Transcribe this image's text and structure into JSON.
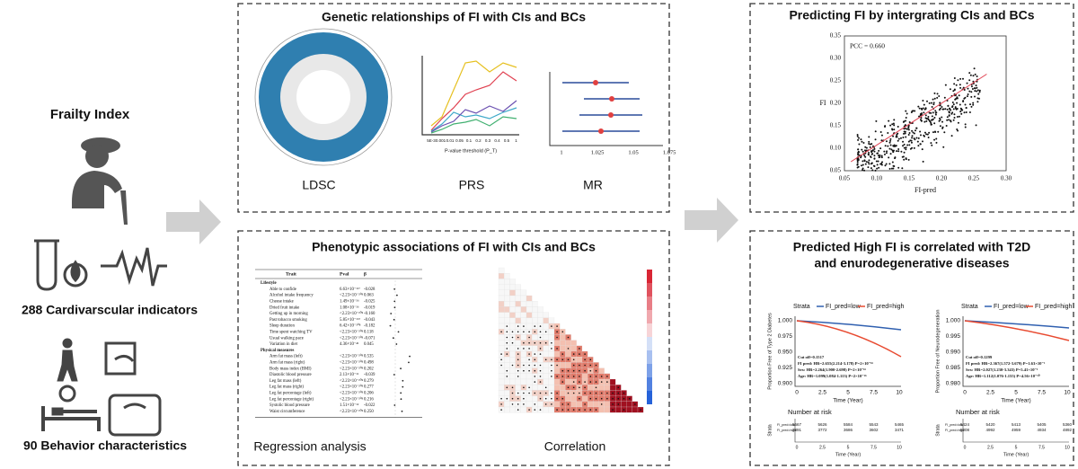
{
  "left": {
    "frailty": "Frailty Index",
    "cardio": "288 Cardivarscular indicators",
    "behavior": "90 Behavior characteristics"
  },
  "genetic": {
    "title": "Genetic relationships of FI with CIs and BCs",
    "ldsc": "LDSC",
    "prs": "PRS",
    "mr": "MR",
    "prs_xlabel": "P-value threshold (P_T)",
    "prs_xticks": [
      "5E-3",
      "0.001",
      "0.01",
      "0.05",
      "0.1",
      "0.2",
      "0.3",
      "0.4",
      "0.5",
      "1"
    ],
    "mr_xticks": [
      "1",
      "1.025",
      "1.05",
      "1.075"
    ]
  },
  "phenotypic": {
    "title": "Phenotypic associations of FI with CIs and BCs",
    "regression": "Regression analysis",
    "correlation": "Correlation",
    "table": {
      "headers": [
        "Trait",
        "Pval",
        "β"
      ],
      "rows": [
        [
          "Lifestyle",
          "",
          ""
        ],
        [
          "Able to confide",
          "6.63×10⁻¹¹⁷",
          "-0.028"
        ],
        [
          "Alcohol intake frequency",
          "<2.23×10⁻³⁰⁸",
          "0.063"
        ],
        [
          "Cheese intake",
          "1.49×10⁻⁵⁶",
          "-0.025"
        ],
        [
          "Dried fruit intake",
          "1.08×10⁻³⁶",
          "-0.019"
        ],
        [
          "Getting up in morning",
          "<2.23×10⁻³⁰⁸",
          "-0.160"
        ],
        [
          "Past tobacco smoking",
          "5.85×10⁻¹⁶⁷",
          "-0.043"
        ],
        [
          "Sleep duration",
          "6.42×10⁻³⁰⁸",
          "-0.182"
        ],
        [
          "Time spent watching TV",
          "<2.23×10⁻³⁰⁸",
          "0.118"
        ],
        [
          "Usual walking pace",
          "<2.23×10⁻³⁰⁸",
          "-0.071"
        ],
        [
          "Variation in diet",
          "4.36×10⁻⁴¹",
          "0.045"
        ],
        [
          "Physical measures",
          "",
          ""
        ],
        [
          "Arm fat mass (left)",
          "<2.23×10⁻³⁰⁸",
          "0.535"
        ],
        [
          "Arm fat mass (right)",
          "<2.23×10⁻³⁰⁸",
          "0.498"
        ],
        [
          "Body mass index (BMI)",
          "<2.23×10⁻³⁰⁸",
          "0.202"
        ],
        [
          "Diastolic blood pressure",
          "2.13×10⁻¹¹",
          "-0.039"
        ],
        [
          "Leg fat mass (left)",
          "<2.23×10⁻³⁰⁸",
          "0.279"
        ],
        [
          "Leg fat mass (right)",
          "<2.23×10⁻³⁰⁸",
          "0.277"
        ],
        [
          "Leg fat percentage (left)",
          "<2.23×10⁻³⁰⁸",
          "0.206"
        ],
        [
          "Leg fat percentage (right)",
          "<2.23×10⁻³⁰⁸",
          "0.216"
        ],
        [
          "Systolic blood pressure",
          "1.51×10⁻¹²",
          "-0.022"
        ],
        [
          "Waist circumference",
          "<2.23×10⁻³⁰⁸",
          "0.250"
        ]
      ]
    }
  },
  "predict": {
    "title": "Predicting FI by intergrating CIs and BCs",
    "pcc": "PCC = 0.660",
    "ylabel": "FI",
    "xlabel": "FI-pred",
    "xticks": [
      "0.05",
      "0.10",
      "0.15",
      "0.20",
      "0.25",
      "0.30"
    ],
    "yticks": [
      "0.05",
      "0.10",
      "0.15",
      "0.20",
      "0.25",
      "0.30",
      "0.35"
    ]
  },
  "disease": {
    "title_lines": [
      "Predicted High FI is correlated with T2D",
      "and enurodegenerative diseases"
    ],
    "plots": [
      {
        "ylabel": "Proportion Free of Type 2 Diabetes",
        "yticks": [
          "1.000",
          "0.975",
          "0.950",
          "0.925",
          "0.900"
        ],
        "strata": "Strata",
        "low": "FI_pred=low",
        "high": "FI_pred=high",
        "notes": [
          "Cut off=0.1517",
          "FI pred: HR=2.655(2.214-3.178) P=2×10⁻¹⁶",
          "Sex: HR=2.264(1.900-2.698) P=2×10⁻¹⁶",
          "Age: HR=1.099(1.084-1.113) P=2×10⁻¹⁶"
        ],
        "xlabel": "Time (Year)",
        "xticks": [
          "0",
          "2.5",
          "5",
          "7.5",
          "10"
        ],
        "risk_title": "Number at risk",
        "risk_axis": "Strata",
        "risk_rows": [
          [
            "5667",
            "5626",
            "5584",
            "5543",
            "5465"
          ],
          [
            "3891",
            "3772",
            "3686",
            "3602",
            "3471"
          ]
        ],
        "risk_labels": [
          "FI_pred=low",
          "FI_pred=high"
        ]
      },
      {
        "ylabel": "Proportion Free of Neurodegeneration",
        "yticks": [
          "1.000",
          "0.995",
          "0.990",
          "0.985",
          "0.980"
        ],
        "strata": "Strata",
        "low": "FI_pred=low",
        "high": "FI_pred=high",
        "notes": [
          "Cut off=0.1299",
          "FI pred: HR=2.367(1.572-3.679) P=1.63×10⁻⁵",
          "Sex: HR=2.027(1.230-3.343) P=5.41×10⁻³",
          "Age: HR=1.112(1.076-1.155) P=4.56×10⁻¹⁰"
        ],
        "xlabel": "Time (Year)",
        "xticks": [
          "0",
          "2.5",
          "5",
          "7.5",
          "10"
        ],
        "risk_title": "Number at risk",
        "risk_axis": "Strata",
        "risk_rows": [
          [
            "5424",
            "5420",
            "5413",
            "5405",
            "5360"
          ],
          [
            "5008",
            "4992",
            "4959",
            "4934",
            "4892"
          ]
        ],
        "risk_labels": [
          "FI_pred=low",
          "FI_pred=high"
        ]
      }
    ]
  }
}
